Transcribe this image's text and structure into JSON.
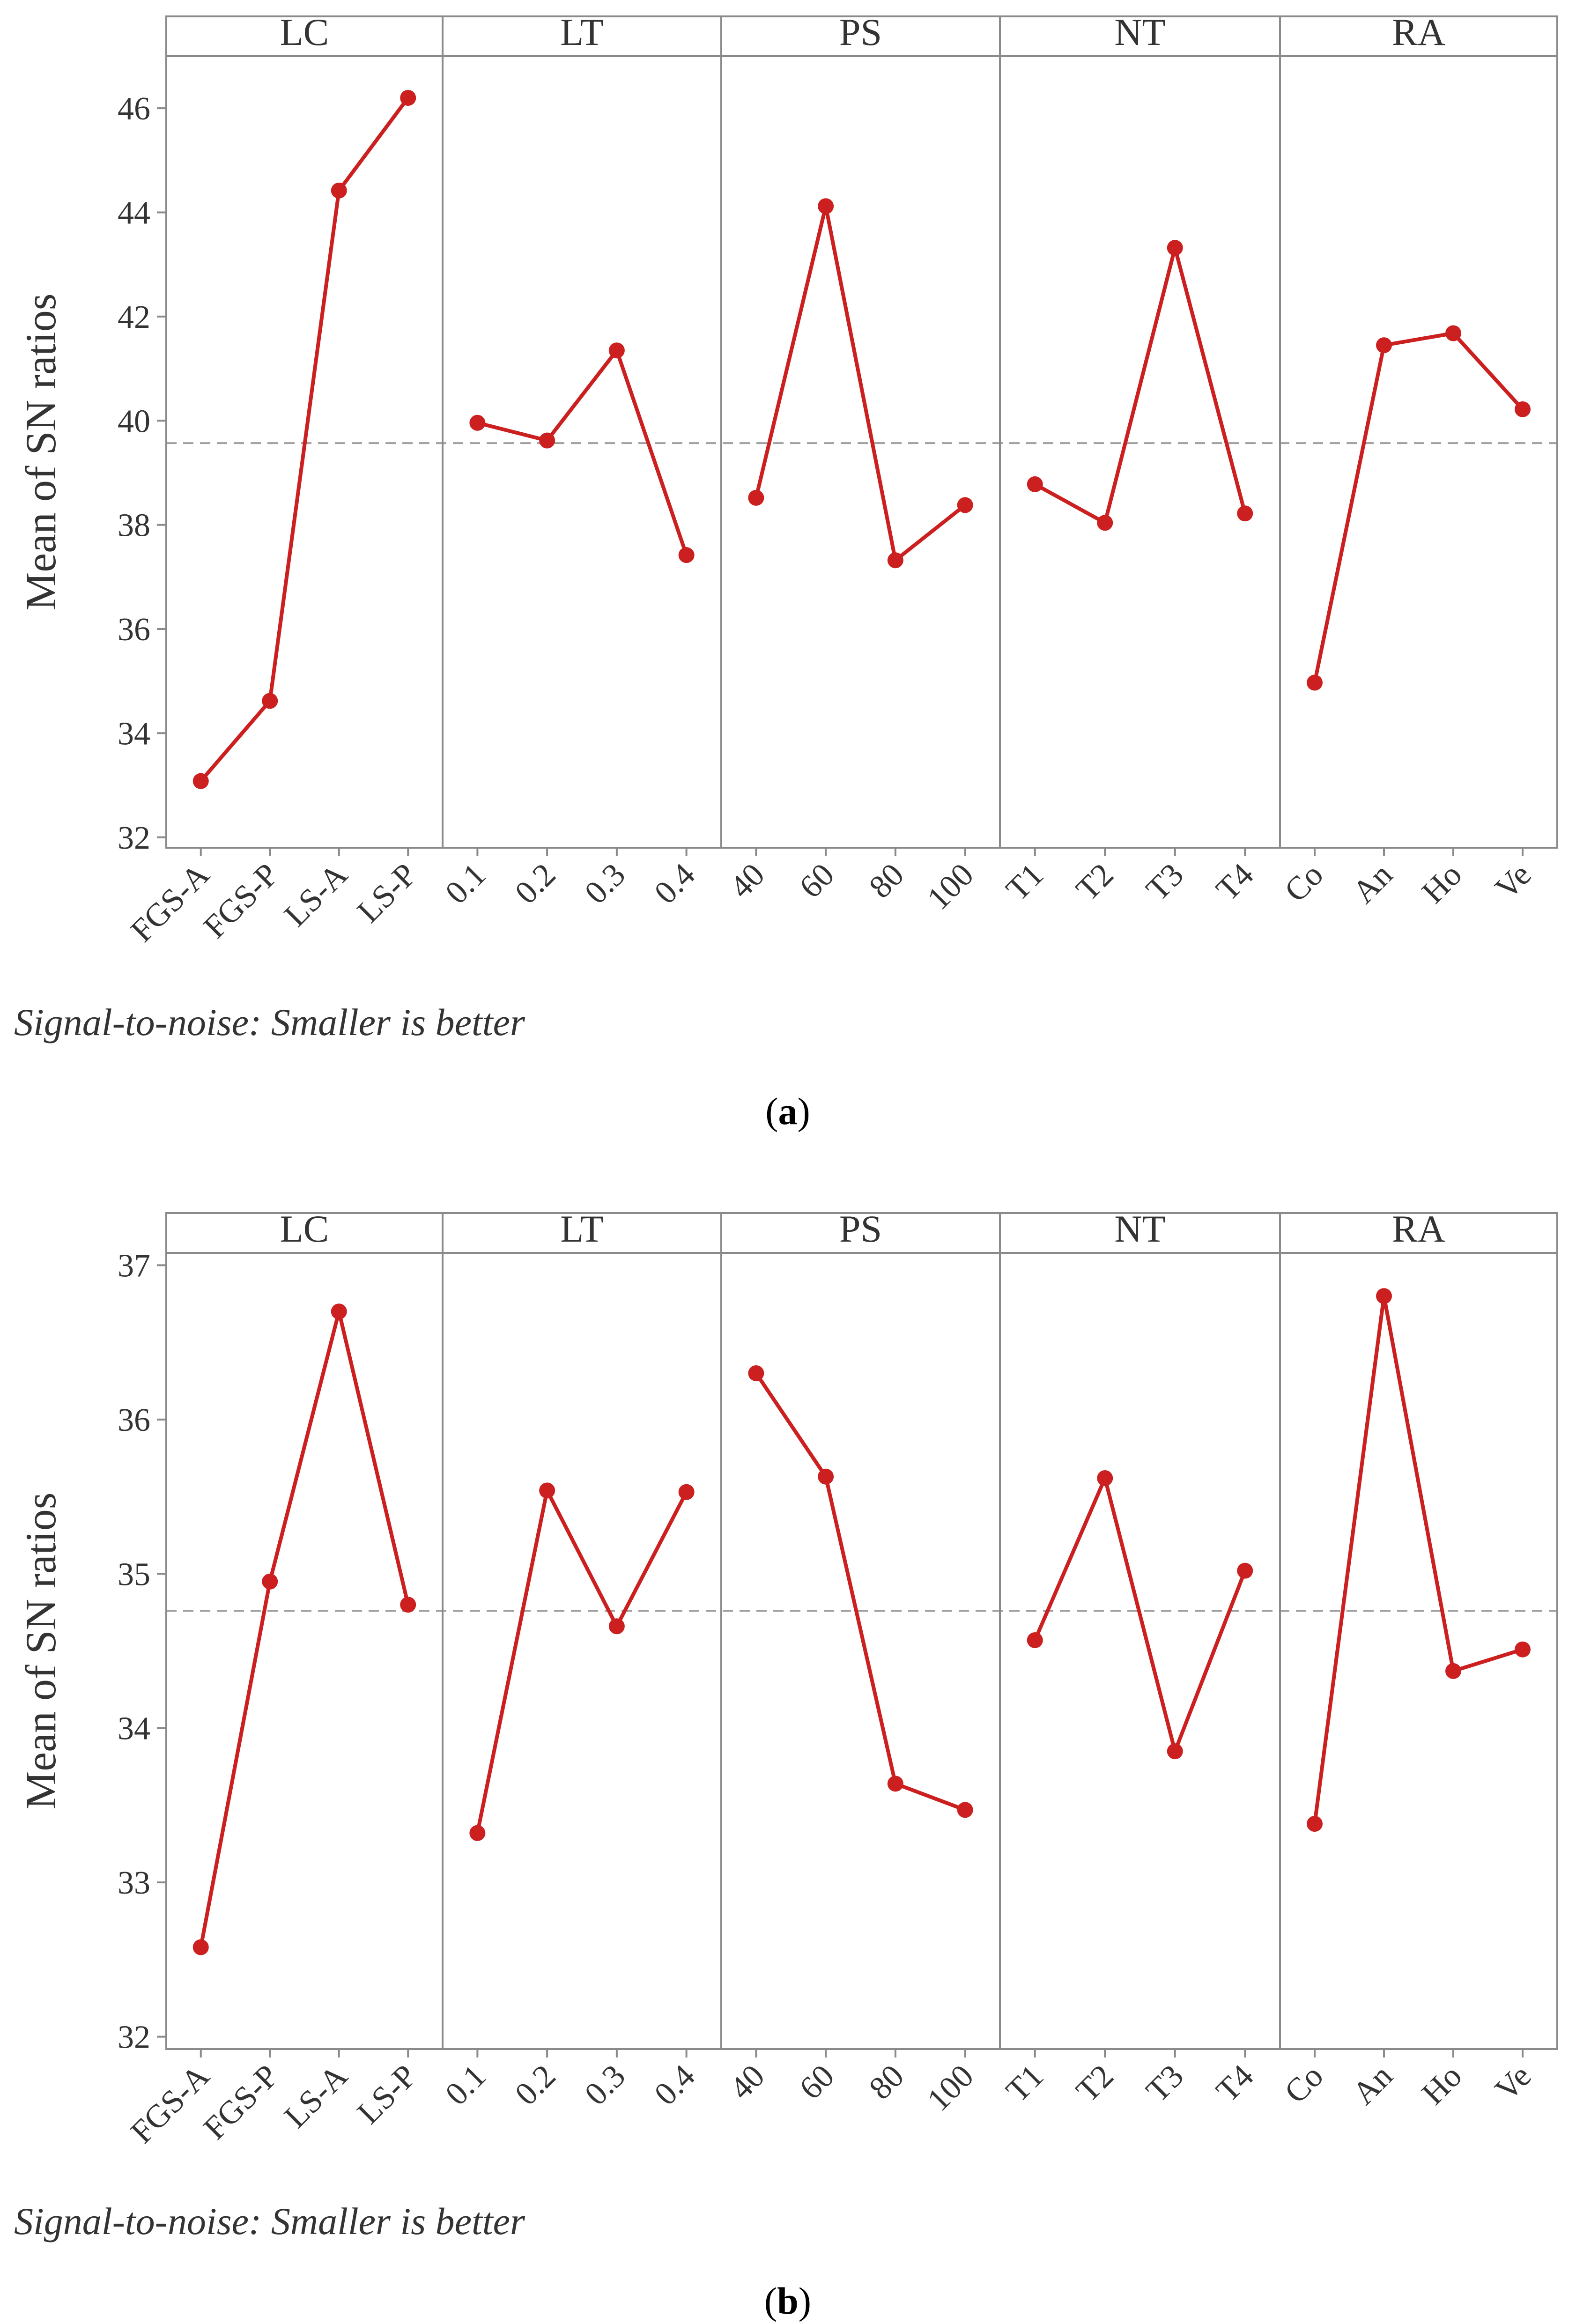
{
  "colors": {
    "series": "#cc1f1f",
    "frame": "#8a8a8a",
    "reference_line": "#a0a0a0",
    "text": "#333333",
    "background": "#ffffff"
  },
  "chart_data": [
    {
      "type": "line",
      "panel_label_prefix": "(",
      "panel_label_letter": "a",
      "panel_label_suffix": ")",
      "ylabel": "Mean of SN ratios",
      "footnote": "Signal-to-noise: Smaller is better",
      "ylim": [
        31.8,
        47.0
      ],
      "yticks": [
        32,
        34,
        36,
        38,
        40,
        42,
        44,
        46
      ],
      "reference_line": 39.57,
      "facets": [
        {
          "name": "LC",
          "categories": [
            "FGS-A",
            "FGS-P",
            "LS-A",
            "LS-P"
          ],
          "values": [
            33.08,
            34.62,
            44.42,
            46.2
          ]
        },
        {
          "name": "LT",
          "categories": [
            "0.1",
            "0.2",
            "0.3",
            "0.4"
          ],
          "values": [
            39.96,
            39.62,
            41.35,
            37.42
          ]
        },
        {
          "name": "PS",
          "categories": [
            "40",
            "60",
            "80",
            "100"
          ],
          "values": [
            38.52,
            44.12,
            37.32,
            38.38
          ]
        },
        {
          "name": "NT",
          "categories": [
            "T1",
            "T2",
            "T3",
            "T4"
          ],
          "values": [
            38.78,
            38.04,
            43.32,
            38.22
          ]
        },
        {
          "name": "RA",
          "categories": [
            "Co",
            "An",
            "Ho",
            "Ve"
          ],
          "values": [
            34.97,
            41.45,
            41.68,
            40.22
          ]
        }
      ]
    },
    {
      "type": "line",
      "panel_label_prefix": "(",
      "panel_label_letter": "b",
      "panel_label_suffix": ")",
      "ylabel": "Mean of SN ratios",
      "footnote": "Signal-to-noise: Smaller is better",
      "ylim": [
        31.92,
        37.08
      ],
      "yticks": [
        32,
        33,
        34,
        35,
        36,
        37
      ],
      "reference_line": 34.76,
      "facets": [
        {
          "name": "LC",
          "categories": [
            "FGS-A",
            "FGS-P",
            "LS-A",
            "LS-P"
          ],
          "values": [
            32.58,
            34.95,
            36.7,
            34.8
          ]
        },
        {
          "name": "LT",
          "categories": [
            "0.1",
            "0.2",
            "0.3",
            "0.4"
          ],
          "values": [
            33.32,
            35.54,
            34.66,
            35.53
          ]
        },
        {
          "name": "PS",
          "categories": [
            "40",
            "60",
            "80",
            "100"
          ],
          "values": [
            36.3,
            35.63,
            33.64,
            33.47
          ]
        },
        {
          "name": "NT",
          "categories": [
            "T1",
            "T2",
            "T3",
            "T4"
          ],
          "values": [
            34.57,
            35.62,
            33.85,
            35.02
          ]
        },
        {
          "name": "RA",
          "categories": [
            "Co",
            "An",
            "Ho",
            "Ve"
          ],
          "values": [
            33.38,
            36.8,
            34.37,
            34.51
          ]
        }
      ]
    }
  ]
}
